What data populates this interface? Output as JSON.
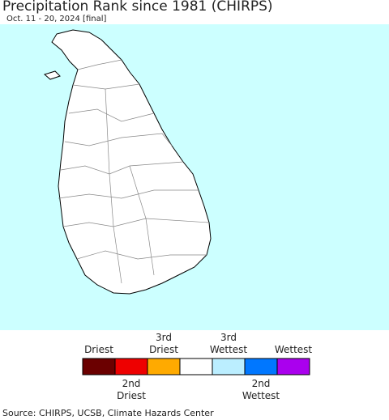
{
  "header": {
    "title": "Precipitation Rank since 1981 (CHIRPS)",
    "subtitle": "Oct. 11 - 20, 2024 [final]"
  },
  "legend": {
    "items": [
      {
        "label": [
          "Driest"
        ],
        "color": "#6b0000"
      },
      {
        "label": [
          "2nd",
          "Driest"
        ],
        "color": "#ee0000"
      },
      {
        "label": [
          "3rd",
          "Driest"
        ],
        "color": "#ffaa00"
      },
      {
        "label": [],
        "color": "#ffffff"
      },
      {
        "label": [
          "3rd",
          "Wettest"
        ],
        "color": "#bbeeff"
      },
      {
        "label": [
          "2nd",
          "Wettest"
        ],
        "color": "#0077ff"
      },
      {
        "label": [
          "Wettest"
        ],
        "color": "#aa00ee"
      }
    ]
  },
  "footer": {
    "source": "Source: CHIRPS, UCSB, Climate Hazards Center"
  }
}
